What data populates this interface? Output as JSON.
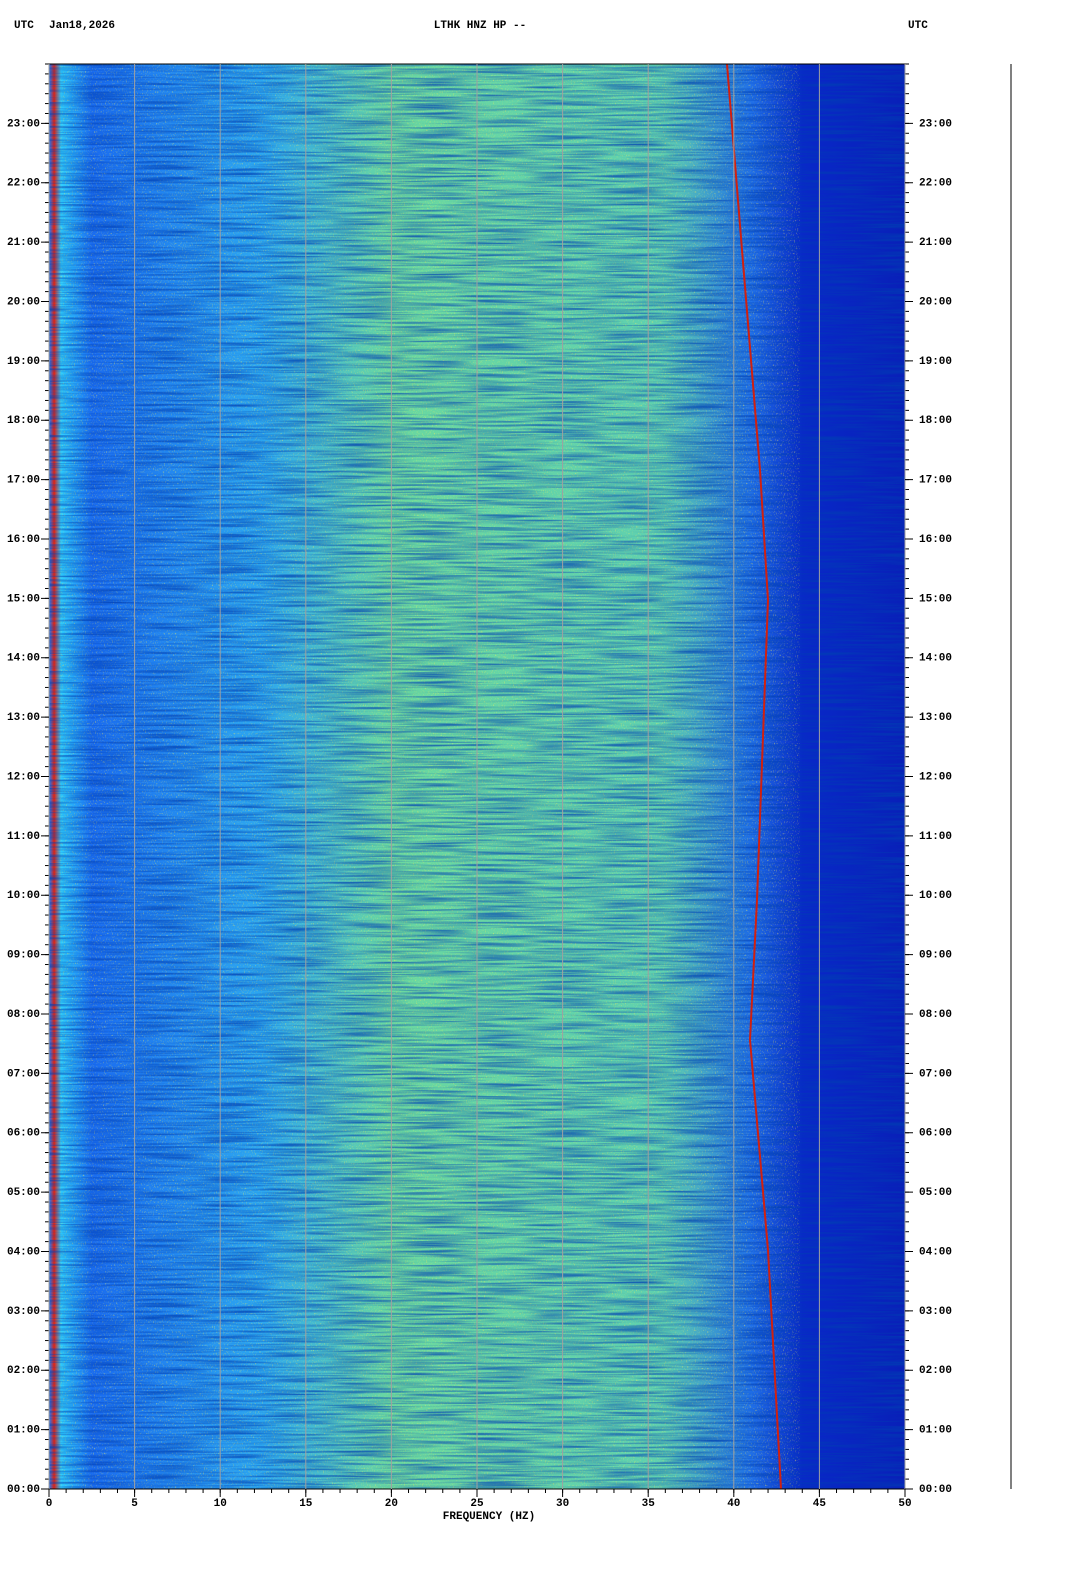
{
  "chart_data": {
    "type": "spectrogram",
    "title": "LTHK HNZ HP --",
    "left_label": "UTC",
    "date": "Jan18,2026",
    "right_label": "UTC",
    "x_label": "FREQUENCY (HZ)",
    "xlim": [
      0,
      50
    ],
    "xticks": [
      0,
      5,
      10,
      15,
      20,
      25,
      30,
      35,
      40,
      45,
      50
    ],
    "ylim": [
      0,
      24
    ],
    "yticks": [
      {
        "value": 0,
        "label": "00:00"
      },
      {
        "value": 1,
        "label": "01:00"
      },
      {
        "value": 2,
        "label": "02:00"
      },
      {
        "value": 3,
        "label": "03:00"
      },
      {
        "value": 4,
        "label": "04:00"
      },
      {
        "value": 5,
        "label": "05:00"
      },
      {
        "value": 6,
        "label": "06:00"
      },
      {
        "value": 7,
        "label": "07:00"
      },
      {
        "value": 8,
        "label": "08:00"
      },
      {
        "value": 9,
        "label": "09:00"
      },
      {
        "value": 10,
        "label": "10:00"
      },
      {
        "value": 11,
        "label": "11:00"
      },
      {
        "value": 12,
        "label": "12:00"
      },
      {
        "value": 13,
        "label": "13:00"
      },
      {
        "value": 14,
        "label": "14:00"
      },
      {
        "value": 15,
        "label": "15:00"
      },
      {
        "value": 16,
        "label": "16:00"
      },
      {
        "value": 17,
        "label": "17:00"
      },
      {
        "value": 18,
        "label": "18:00"
      },
      {
        "value": 19,
        "label": "19:00"
      },
      {
        "value": 20,
        "label": "20:00"
      },
      {
        "value": 21,
        "label": "21:00"
      },
      {
        "value": 22,
        "label": "22:00"
      },
      {
        "value": 23,
        "label": "23:00"
      }
    ],
    "grid": true,
    "grid_color": "#a0a0a0"
  }
}
